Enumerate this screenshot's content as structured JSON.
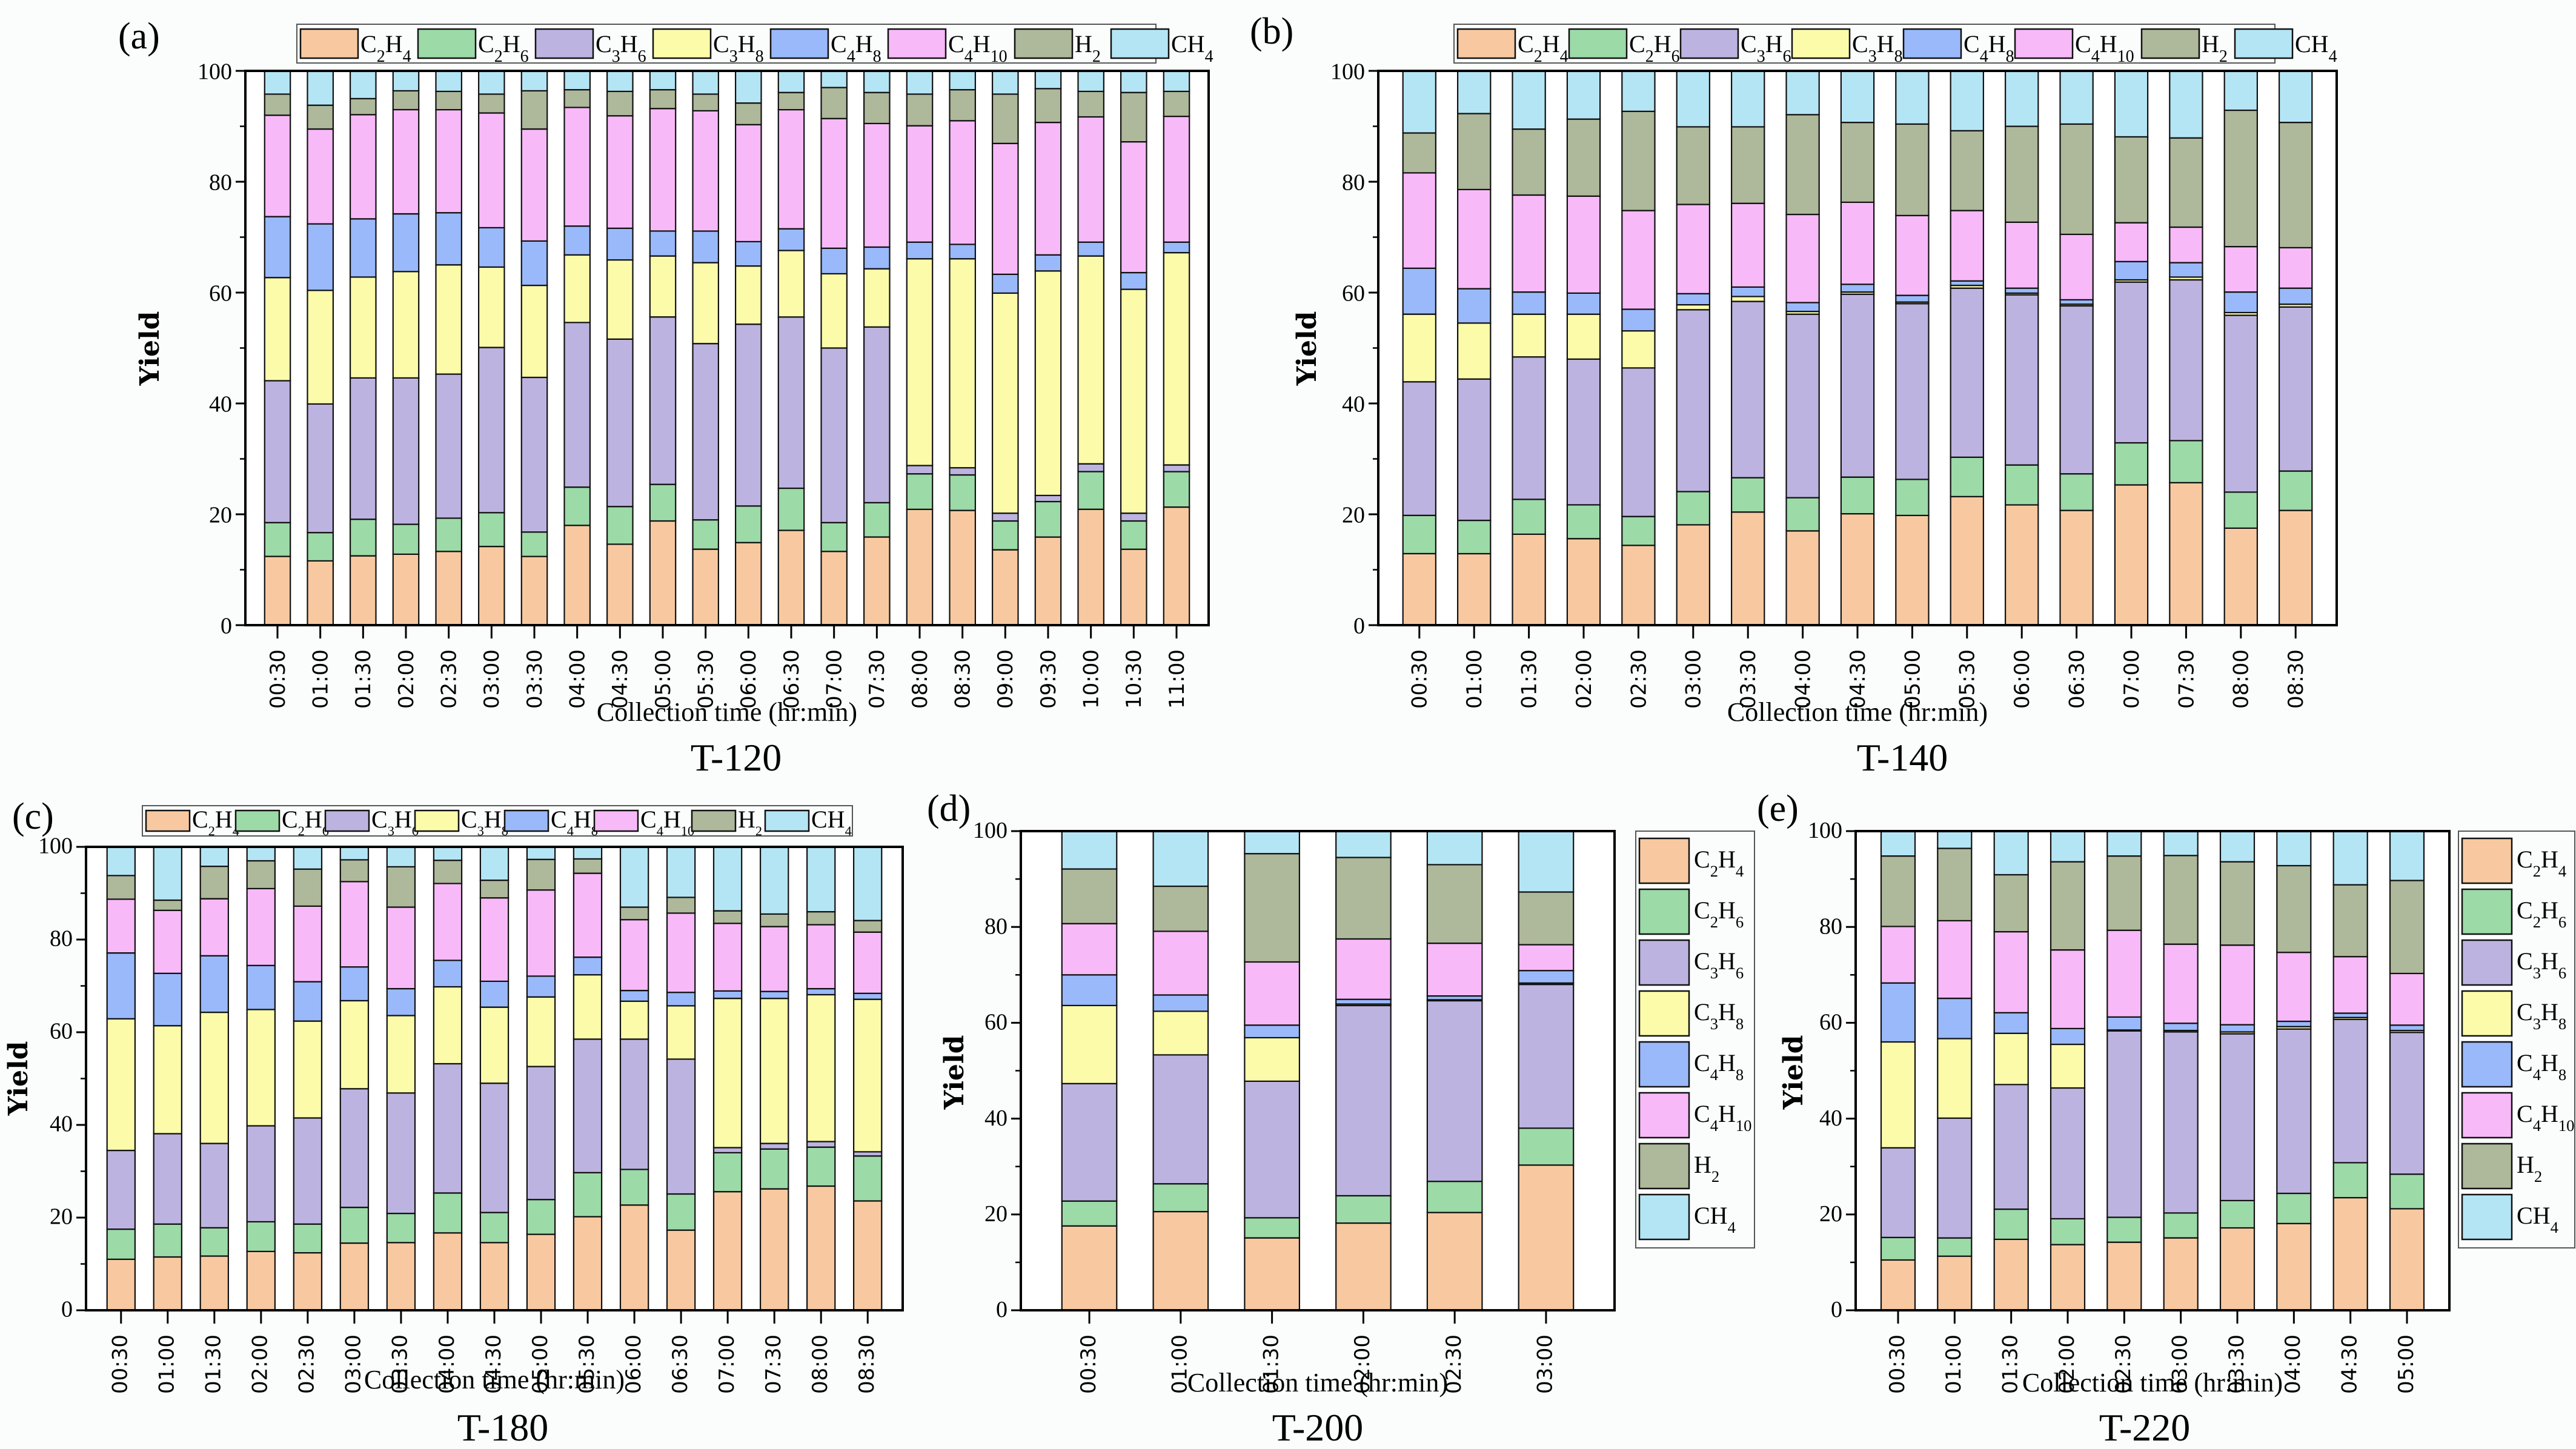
{
  "series_names": [
    "C2H4",
    "C2H6",
    "C3H6",
    "C3H8",
    "C4H8",
    "C4H10",
    "H2",
    "CH4"
  ],
  "legend_labels": [
    {
      "base": "C",
      "sub1": "2",
      "mid": "H",
      "sub2": "4"
    },
    {
      "base": "C",
      "sub1": "2",
      "mid": "H",
      "sub2": "6"
    },
    {
      "base": "C",
      "sub1": "3",
      "mid": "H",
      "sub2": "6"
    },
    {
      "base": "C",
      "sub1": "3",
      "mid": "H",
      "sub2": "8"
    },
    {
      "base": "C",
      "sub1": "4",
      "mid": "H",
      "sub2": "8"
    },
    {
      "base": "C",
      "sub1": "4",
      "mid": "H",
      "sub2": "10"
    },
    {
      "base": "H",
      "sub1": "2",
      "mid": "",
      "sub2": ""
    },
    {
      "base": "CH",
      "sub1": "4",
      "mid": "",
      "sub2": ""
    }
  ],
  "colors": [
    "#F8C9A0",
    "#9CDAA8",
    "#BDB3E0",
    "#FBFBAA",
    "#99B9FB",
    "#F7B9F8",
    "#AEB89A",
    "#B4E5F5"
  ],
  "chart_data": [
    {
      "type": "bar",
      "stacked": true,
      "panel_label": "(a)",
      "title": "T-120",
      "xlabel": "Collection time (hr:min)",
      "ylabel": "Yield",
      "ylim": [
        0,
        100
      ],
      "yticks": [
        0,
        20,
        40,
        60,
        80,
        100
      ],
      "legend_placement": "top",
      "categories": [
        "00:30",
        "01:00",
        "01:30",
        "02:00",
        "02:30",
        "03:00",
        "03:30",
        "04:00",
        "04:30",
        "05:00",
        "05:30",
        "06:00",
        "06:30",
        "07:00",
        "07:30",
        "08:00",
        "08:30",
        "09:00",
        "09:30",
        "10:00",
        "10:30",
        "11:00"
      ],
      "cumulative": [
        [
          12.4,
          18.5,
          44.1,
          62.7,
          73.7,
          92.0,
          95.8,
          100
        ],
        [
          11.6,
          16.7,
          39.9,
          60.4,
          72.4,
          89.5,
          93.8,
          100
        ],
        [
          12.5,
          19.1,
          44.6,
          62.8,
          73.3,
          92.1,
          95.0,
          100
        ],
        [
          12.8,
          18.2,
          44.6,
          63.8,
          74.2,
          93.0,
          96.4,
          100
        ],
        [
          13.3,
          19.3,
          45.3,
          65.0,
          74.4,
          93.0,
          96.3,
          100
        ],
        [
          14.2,
          20.3,
          50.1,
          64.6,
          71.7,
          92.4,
          95.8,
          100
        ],
        [
          12.4,
          16.8,
          44.7,
          61.3,
          69.3,
          89.5,
          96.4,
          100
        ],
        [
          18.0,
          24.9,
          54.6,
          66.8,
          72.0,
          93.4,
          96.6,
          100
        ],
        [
          14.6,
          21.4,
          51.6,
          65.9,
          71.6,
          91.9,
          96.3,
          100
        ],
        [
          18.8,
          25.4,
          55.6,
          66.6,
          71.1,
          93.2,
          96.6,
          100
        ],
        [
          13.7,
          19.0,
          50.8,
          65.4,
          71.1,
          92.8,
          95.8,
          100
        ],
        [
          14.9,
          21.5,
          54.3,
          64.8,
          69.2,
          90.3,
          94.2,
          100
        ],
        [
          17.1,
          24.7,
          55.6,
          67.6,
          71.5,
          93.0,
          96.1,
          100
        ],
        [
          13.3,
          18.5,
          50.0,
          63.4,
          68.0,
          91.4,
          97.0,
          100
        ],
        [
          15.9,
          22.1,
          53.8,
          64.3,
          68.2,
          90.5,
          96.1,
          100
        ],
        [
          20.9,
          27.3,
          28.8,
          66.1,
          69.1,
          90.1,
          95.8,
          100
        ],
        [
          20.7,
          27.1,
          28.4,
          66.1,
          68.7,
          91.0,
          96.6,
          100
        ],
        [
          13.6,
          18.8,
          20.2,
          59.9,
          63.3,
          86.9,
          95.8,
          100
        ],
        [
          15.9,
          22.3,
          23.4,
          63.9,
          66.8,
          90.7,
          96.8,
          100
        ],
        [
          20.9,
          27.7,
          29.1,
          66.6,
          69.1,
          91.7,
          96.3,
          100
        ],
        [
          13.7,
          18.8,
          20.2,
          60.6,
          63.6,
          87.2,
          96.1,
          100
        ],
        [
          21.3,
          27.7,
          28.9,
          67.2,
          69.1,
          91.8,
          96.3,
          100
        ]
      ]
    },
    {
      "type": "bar",
      "stacked": true,
      "panel_label": "(b)",
      "title": "T-140",
      "xlabel": "Collection time (hr:min)",
      "ylabel": "Yield",
      "ylim": [
        0,
        100
      ],
      "yticks": [
        0,
        20,
        40,
        60,
        80,
        100
      ],
      "legend_placement": "top",
      "categories": [
        "00:30",
        "01:00",
        "01:30",
        "02:00",
        "02:30",
        "03:00",
        "03:30",
        "04:00",
        "04:30",
        "05:00",
        "05:30",
        "06:00",
        "06:30",
        "07:00",
        "07:30",
        "08:00",
        "08:30"
      ],
      "cumulative": [
        [
          12.9,
          19.8,
          43.9,
          56.1,
          64.4,
          81.6,
          88.8,
          100
        ],
        [
          12.9,
          18.9,
          44.4,
          54.5,
          60.7,
          78.6,
          92.3,
          100
        ],
        [
          16.4,
          22.7,
          48.4,
          56.1,
          60.1,
          77.6,
          89.5,
          100
        ],
        [
          15.6,
          21.7,
          48.0,
          56.1,
          59.9,
          77.4,
          91.3,
          100
        ],
        [
          14.4,
          19.6,
          46.4,
          53.1,
          57.0,
          74.8,
          92.7,
          100
        ],
        [
          18.1,
          24.1,
          56.9,
          57.8,
          59.8,
          75.9,
          89.9,
          100
        ],
        [
          20.4,
          26.6,
          58.4,
          59.3,
          61.0,
          76.1,
          89.9,
          100
        ],
        [
          17.0,
          23.0,
          56.1,
          56.6,
          58.2,
          74.1,
          92.1,
          100
        ],
        [
          20.1,
          26.7,
          59.7,
          60.1,
          61.5,
          76.3,
          90.7,
          100
        ],
        [
          19.8,
          26.3,
          58.0,
          58.3,
          59.5,
          73.9,
          90.4,
          100
        ],
        [
          23.2,
          30.3,
          60.8,
          61.3,
          62.1,
          74.8,
          89.2,
          100
        ],
        [
          21.7,
          28.9,
          59.6,
          59.9,
          60.8,
          72.7,
          90.0,
          100
        ],
        [
          20.7,
          27.3,
          57.6,
          57.9,
          58.7,
          70.5,
          90.4,
          100
        ],
        [
          25.3,
          32.9,
          61.9,
          62.3,
          65.6,
          72.6,
          88.1,
          100
        ],
        [
          25.7,
          33.3,
          62.3,
          62.8,
          65.4,
          71.8,
          87.9,
          100
        ],
        [
          17.5,
          24.0,
          55.9,
          56.4,
          60.1,
          68.3,
          92.9,
          100
        ],
        [
          20.7,
          27.8,
          57.4,
          57.9,
          60.8,
          68.1,
          90.7,
          100
        ]
      ]
    },
    {
      "type": "bar",
      "stacked": true,
      "panel_label": "(c)",
      "title": "T-180",
      "xlabel": "Collection time (hr:min)",
      "ylabel": "Yield",
      "ylim": [
        0,
        100
      ],
      "yticks": [
        0,
        20,
        40,
        60,
        80,
        100
      ],
      "legend_placement": "top",
      "categories": [
        "00:30",
        "01:00",
        "01:30",
        "02:00",
        "02:30",
        "03:00",
        "03:30",
        "04:00",
        "04:30",
        "05:00",
        "05:30",
        "06:00",
        "06:30",
        "07:00",
        "07:30",
        "08:00",
        "08:30"
      ],
      "cumulative": [
        [
          11.0,
          17.5,
          34.5,
          62.9,
          77.1,
          88.7,
          93.8,
          100
        ],
        [
          11.5,
          18.6,
          38.1,
          61.4,
          72.7,
          86.3,
          88.5,
          100
        ],
        [
          11.7,
          17.8,
          36.0,
          64.3,
          76.5,
          88.8,
          95.8,
          100
        ],
        [
          12.7,
          19.1,
          39.8,
          64.9,
          74.4,
          91.0,
          97.0,
          100
        ],
        [
          12.4,
          18.6,
          41.5,
          62.4,
          70.9,
          87.2,
          95.2,
          100
        ],
        [
          14.5,
          22.2,
          47.8,
          66.8,
          74.1,
          92.5,
          97.2,
          100
        ],
        [
          14.6,
          20.9,
          46.9,
          63.6,
          69.4,
          87.0,
          95.7,
          100
        ],
        [
          16.7,
          25.3,
          53.2,
          69.8,
          75.5,
          92.1,
          97.1,
          100
        ],
        [
          14.6,
          21.1,
          49.0,
          65.4,
          71.0,
          89.0,
          92.8,
          100
        ],
        [
          16.4,
          23.9,
          52.6,
          67.6,
          72.1,
          90.7,
          97.3,
          100
        ],
        [
          20.2,
          29.7,
          58.5,
          72.4,
          76.2,
          94.3,
          97.4,
          100
        ],
        [
          22.7,
          30.4,
          58.5,
          66.7,
          69.0,
          84.3,
          87.0,
          100
        ],
        [
          17.3,
          25.1,
          54.2,
          65.7,
          68.6,
          85.7,
          89.1,
          100
        ],
        [
          25.6,
          34.0,
          35.1,
          67.3,
          68.9,
          83.5,
          86.2,
          100
        ],
        [
          26.2,
          34.8,
          36.0,
          67.3,
          68.8,
          82.8,
          85.5,
          100
        ],
        [
          26.8,
          35.2,
          36.4,
          68.1,
          69.4,
          83.2,
          86.0,
          100
        ],
        [
          23.6,
          33.3,
          34.2,
          67.1,
          68.4,
          81.6,
          84.1,
          100
        ]
      ]
    },
    {
      "type": "bar",
      "stacked": true,
      "panel_label": "(d)",
      "title": "T-200",
      "xlabel": "Collection time (hr:min)",
      "ylabel": "Yield",
      "ylim": [
        0,
        100
      ],
      "yticks": [
        0,
        20,
        40,
        60,
        80,
        100
      ],
      "legend_placement": "right",
      "categories": [
        "00:30",
        "01:00",
        "01:30",
        "02:00",
        "02:30",
        "03:00"
      ],
      "cumulative": [
        [
          17.6,
          22.8,
          47.3,
          63.6,
          70.0,
          80.7,
          92.1,
          100
        ],
        [
          20.6,
          26.4,
          53.3,
          62.4,
          65.8,
          79.1,
          88.5,
          100
        ],
        [
          15.1,
          19.3,
          47.8,
          56.9,
          59.5,
          72.7,
          95.3,
          100
        ],
        [
          18.2,
          23.9,
          63.6,
          63.9,
          64.9,
          77.5,
          94.5,
          100
        ],
        [
          20.4,
          26.9,
          64.6,
          64.8,
          65.6,
          76.6,
          93.0,
          100
        ],
        [
          30.3,
          38.0,
          68.0,
          68.3,
          70.9,
          76.3,
          87.3,
          100
        ]
      ]
    },
    {
      "type": "bar",
      "stacked": true,
      "panel_label": "(e)",
      "title": "T-220",
      "xlabel": "Collection time (hr:min)",
      "ylabel": "Yield",
      "ylim": [
        0,
        100
      ],
      "yticks": [
        0,
        20,
        40,
        60,
        80,
        100
      ],
      "legend_placement": "right",
      "categories": [
        "00:30",
        "01:00",
        "01:30",
        "02:00",
        "02:30",
        "03:00",
        "03:30",
        "04:00",
        "04:30",
        "05:00"
      ],
      "cumulative": [
        [
          10.5,
          15.2,
          33.9,
          56.0,
          68.3,
          80.1,
          94.8,
          100
        ],
        [
          11.3,
          15.1,
          40.1,
          56.7,
          65.1,
          81.3,
          96.4,
          100
        ],
        [
          14.8,
          21.1,
          47.1,
          57.8,
          62.1,
          79.0,
          90.9,
          100
        ],
        [
          13.7,
          19.1,
          46.4,
          55.5,
          58.8,
          75.2,
          93.6,
          100
        ],
        [
          14.2,
          19.4,
          58.3,
          58.5,
          61.2,
          79.3,
          94.8,
          100
        ],
        [
          15.1,
          20.3,
          58.1,
          58.4,
          59.9,
          76.4,
          94.9,
          100
        ],
        [
          17.2,
          22.9,
          57.7,
          58.1,
          59.6,
          76.2,
          93.6,
          100
        ],
        [
          18.1,
          24.4,
          58.7,
          59.2,
          60.3,
          74.7,
          92.8,
          100
        ],
        [
          23.5,
          30.8,
          60.7,
          61.1,
          62.0,
          73.8,
          88.8,
          100
        ],
        [
          21.2,
          28.4,
          58.0,
          58.4,
          59.5,
          70.3,
          89.7,
          100
        ]
      ]
    }
  ]
}
